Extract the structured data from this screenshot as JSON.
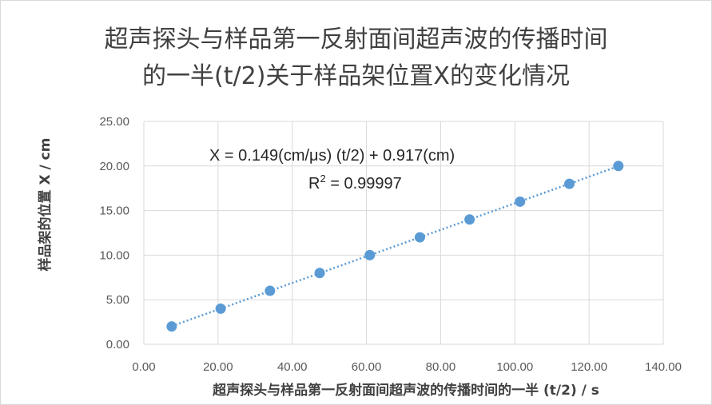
{
  "chart_data": {
    "type": "scatter",
    "title_line1": "超声探头与样品第一反射面间超声波的传播时间",
    "title_line2": "的一半(t/2)关于样品架位置X的变化情况",
    "xlabel": "超声探头与样品第一反射面间超声波的传播时间的一半 (t/2) / s",
    "ylabel": "样品架的位置 X / cm",
    "xlim": [
      0,
      140
    ],
    "ylim": [
      0,
      25
    ],
    "x_ticks": [
      "0.00",
      "20.00",
      "40.00",
      "60.00",
      "80.00",
      "100.00",
      "120.00",
      "140.00"
    ],
    "y_ticks": [
      "0.00",
      "5.00",
      "10.00",
      "15.00",
      "20.00",
      "25.00"
    ],
    "grid": "vertical and horizontal",
    "trendline": {
      "type": "linear",
      "slope": 0.149,
      "intercept": 0.917,
      "style": "dotted",
      "equation": "X = 0.149(cm/μs) (t/2) + 0.917(cm)",
      "r2_prefix": "R",
      "r2_sup": "2",
      "r2_suffix": " = 0.99997"
    },
    "points": [
      {
        "x": 7.5,
        "y": 2
      },
      {
        "x": 20.7,
        "y": 4
      },
      {
        "x": 34.0,
        "y": 6
      },
      {
        "x": 47.4,
        "y": 8
      },
      {
        "x": 60.9,
        "y": 10
      },
      {
        "x": 74.4,
        "y": 12
      },
      {
        "x": 87.8,
        "y": 14
      },
      {
        "x": 101.4,
        "y": 16
      },
      {
        "x": 114.7,
        "y": 18
      },
      {
        "x": 127.9,
        "y": 20
      }
    ],
    "colors": {
      "marker": "#5b9bd5",
      "trendline": "#5b9bd5",
      "grid": "#d9d9d9",
      "text": "#595959"
    }
  }
}
